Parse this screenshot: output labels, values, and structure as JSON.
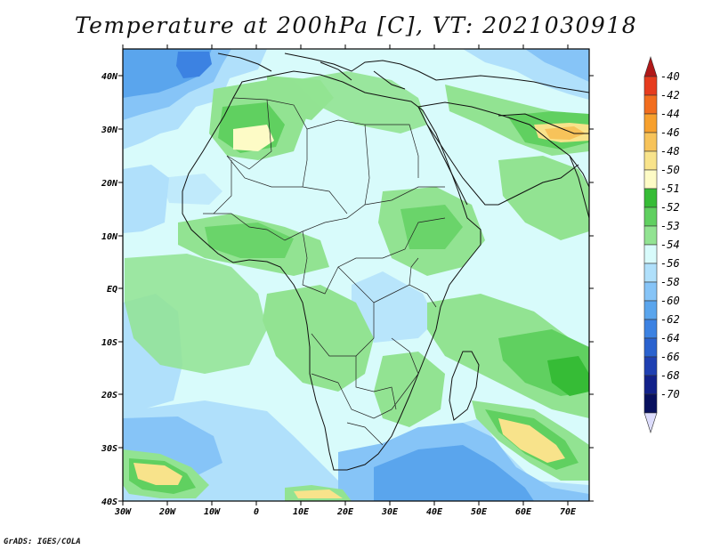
{
  "title": "Temperature at 200hPa [C], VT: 2021030918",
  "footer": "GrADS: IGES/COLA",
  "map": {
    "lat_labels": [
      "40N",
      "30N",
      "20N",
      "10N",
      "EQ",
      "10S",
      "20S",
      "30S",
      "40S"
    ],
    "lon_labels": [
      "30W",
      "20W",
      "10W",
      "0",
      "10E",
      "20E",
      "30E",
      "40E",
      "50E",
      "60E",
      "70E"
    ],
    "lat_range": [
      -40,
      45
    ],
    "lon_range": [
      -30,
      75
    ]
  },
  "colorbar": {
    "labels": [
      "-40",
      "-42",
      "-44",
      "-46",
      "-48",
      "-50",
      "-51",
      "-52",
      "-53",
      "-54",
      "-56",
      "-58",
      "-60",
      "-62",
      "-64",
      "-66",
      "-68",
      "-70"
    ],
    "colors": [
      "#b01818",
      "#e63c1e",
      "#f26d1e",
      "#f7a02d",
      "#f7c35a",
      "#f8e38b",
      "#fdfbc6",
      "#36bc36",
      "#60d060",
      "#92e392",
      "#d8fbfb",
      "#b0e0fb",
      "#86c4f7",
      "#5aa5ed",
      "#3c82e2",
      "#2a62cf",
      "#1f40b2",
      "#12218a",
      "#08105e",
      "#dcdcfc"
    ]
  }
}
